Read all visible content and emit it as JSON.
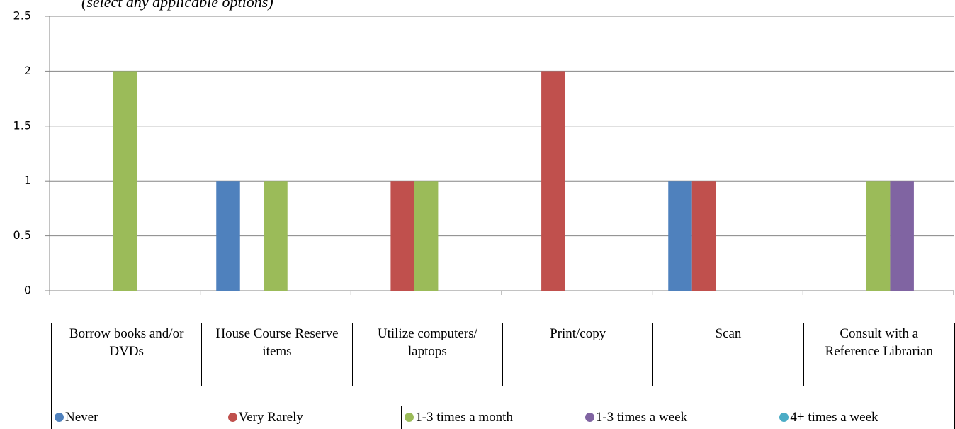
{
  "chart_data": {
    "type": "bar",
    "subtitle": "(select any applicable options)",
    "categories": [
      "Borrow books and/or DVDs",
      "House Course Reserve items",
      "Utilize computers/ laptops",
      "Print/copy",
      "Scan",
      "Consult with a Reference Librarian"
    ],
    "series": [
      {
        "name": "Never",
        "color": "#4f81bd",
        "values": [
          0,
          1,
          0,
          0,
          1,
          0
        ]
      },
      {
        "name": "Very Rarely",
        "color": "#c0504d",
        "values": [
          0,
          0,
          1,
          2,
          1,
          0
        ]
      },
      {
        "name": "1-3 times a month",
        "color": "#9bbb59",
        "values": [
          2,
          1,
          1,
          0,
          0,
          1
        ]
      },
      {
        "name": "1-3 times a week",
        "color": "#8064a2",
        "values": [
          0,
          0,
          0,
          0,
          0,
          1
        ]
      },
      {
        "name": "4+ times a week",
        "color": "#4bacc6",
        "values": [
          0,
          0,
          0,
          0,
          0,
          0
        ]
      }
    ],
    "ylim": [
      0,
      2.5
    ],
    "yticks": [
      0,
      0.5,
      1,
      1.5,
      2,
      2.5
    ],
    "grid": true
  }
}
